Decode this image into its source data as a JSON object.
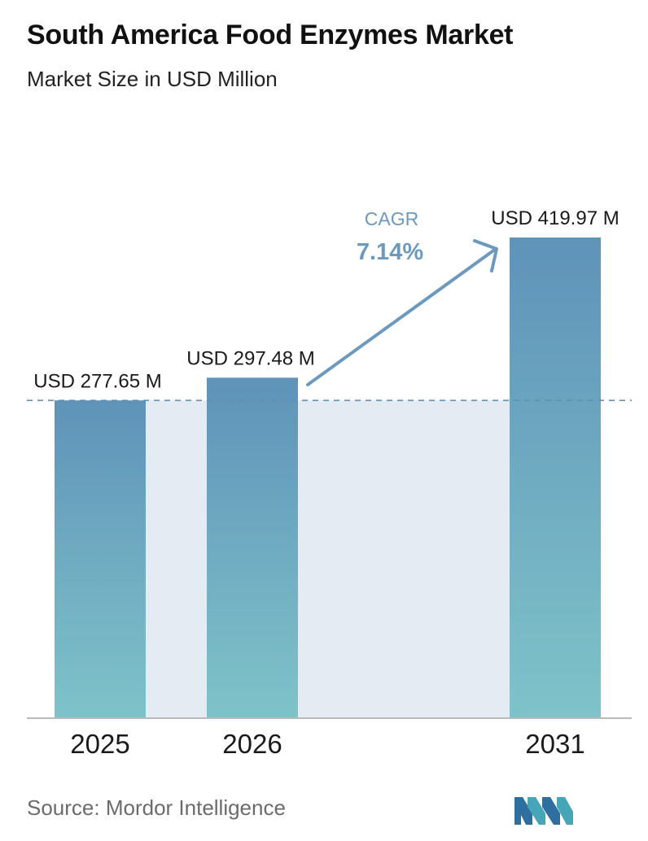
{
  "header": {
    "title": "South America Food Enzymes Market",
    "subtitle": "Market Size in USD Million"
  },
  "chart_data": {
    "type": "bar",
    "title": "South America Food Enzymes Market",
    "subtitle": "Market Size in USD Million",
    "categories": [
      "2025",
      "2026",
      "2031"
    ],
    "values": [
      277.65,
      297.48,
      419.97
    ],
    "data_labels": [
      "USD 277.65 M",
      "USD 297.48 M",
      "USD 419.97 M"
    ],
    "ylim": [
      0,
      419.97
    ],
    "grid": false,
    "reference_line_value": 277.65,
    "annotation": {
      "label": "CAGR",
      "value": "7.14%"
    },
    "colors": {
      "bar_top": "#5f93b9",
      "bar_bottom": "#7fc3c9",
      "band_fill": "#e4ebf2",
      "reference_line": "#5f8fb3",
      "arrow": "#6c99be",
      "axis": "#b9b9b9"
    }
  },
  "footer": {
    "source": "Source:  Mordor Intelligence",
    "logo_icon": "mordor-intelligence-logo-icon"
  }
}
